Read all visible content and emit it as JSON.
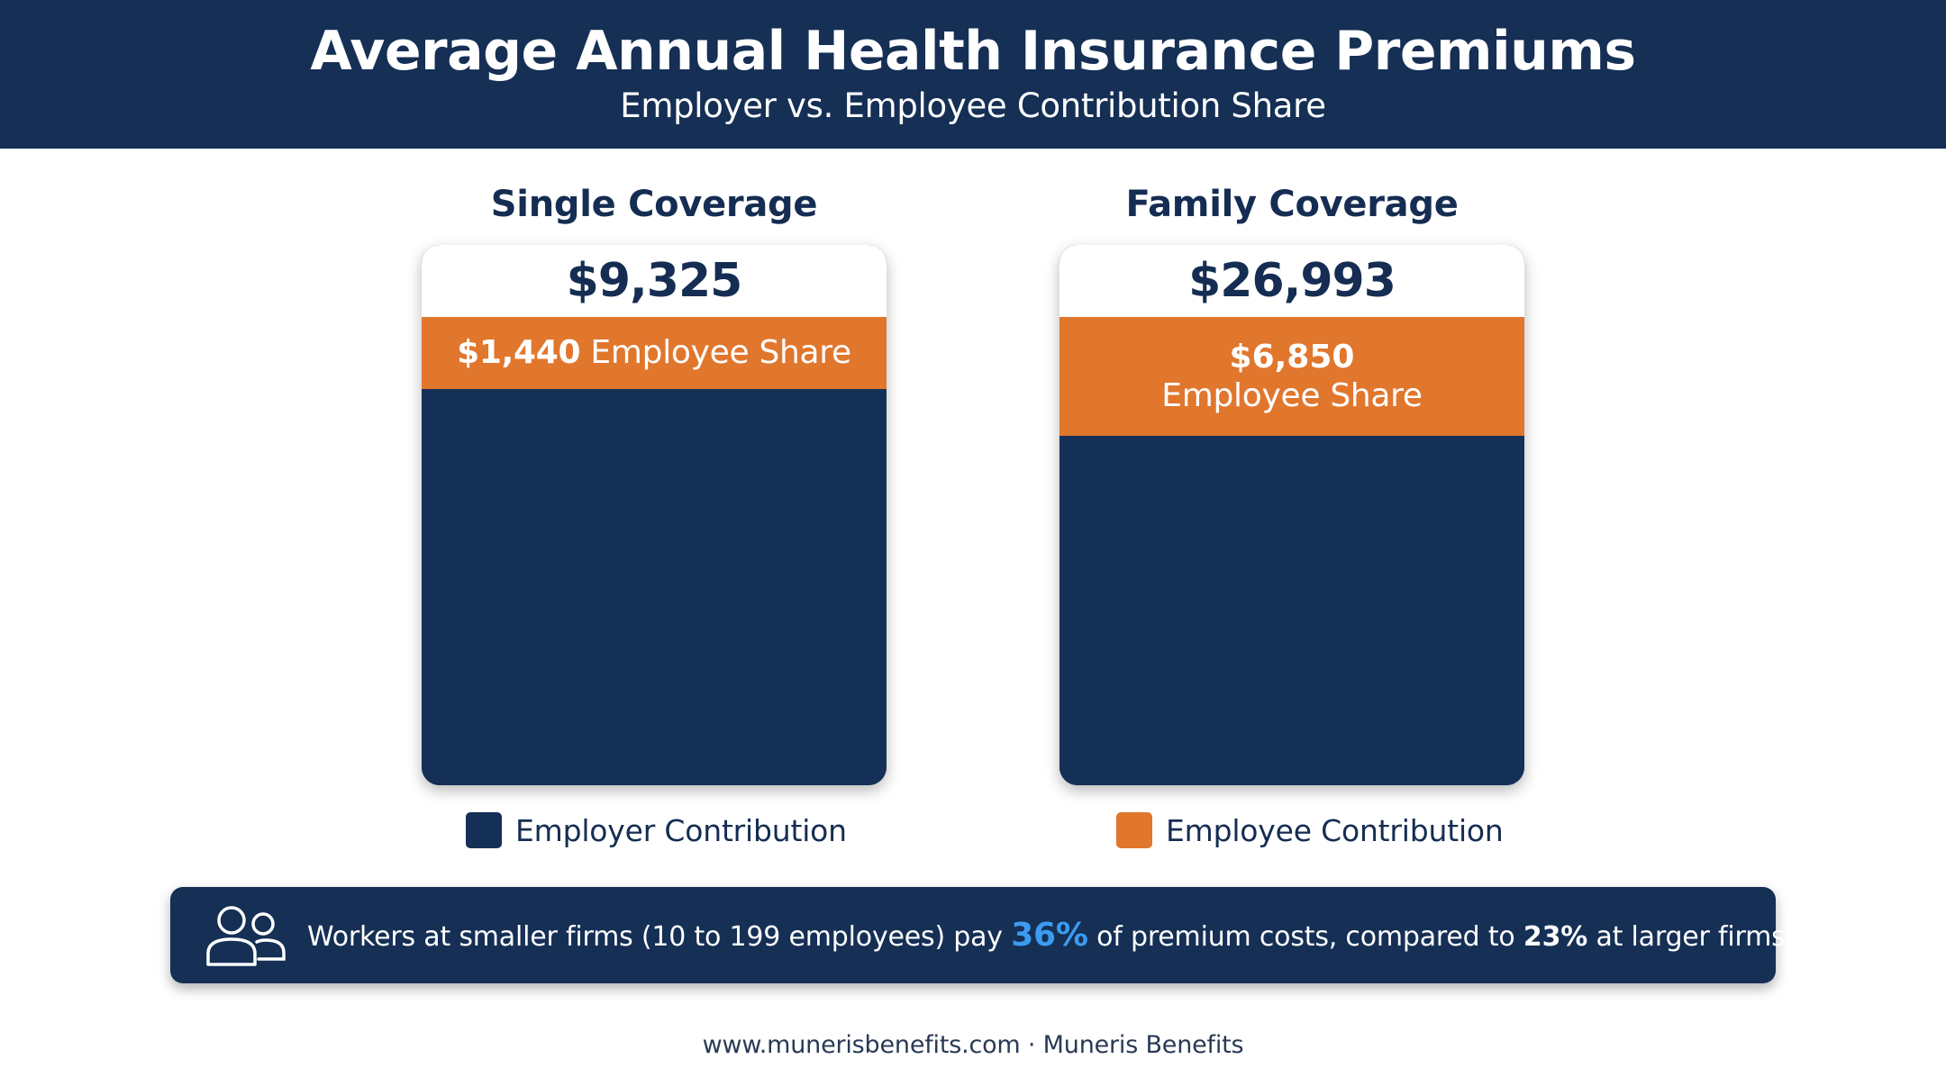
{
  "header": {
    "title": "Average Annual Health Insurance Premiums",
    "subtitle": "Employer vs. Employee Contribution Share"
  },
  "chart_data": {
    "type": "bar",
    "stacked": true,
    "categories": [
      "Single Coverage",
      "Family Coverage"
    ],
    "totals": [
      9325,
      26993
    ],
    "total_labels": [
      "$9,325",
      "$26,993"
    ],
    "series": [
      {
        "name": "Employer Contribution",
        "values": [
          7885,
          20143
        ],
        "color": "#153056"
      },
      {
        "name": "Employee Contribution",
        "values": [
          1440,
          6850
        ],
        "color": "#e1762d"
      }
    ],
    "segment_labels": [
      {
        "amount": "$1,440",
        "text": "Employee Share"
      },
      {
        "amount": "$6,850",
        "text": "Employee Share"
      }
    ],
    "legend": [
      "Employer Contribution",
      "Employee Contribution"
    ]
  },
  "banner": {
    "icon": "users-icon",
    "text_before": "Workers at smaller firms (10 to 199 employees) pay ",
    "small_firm_pct": "36%",
    "text_middle": " of premium costs, compared to ",
    "large_firm_pct": "23%",
    "text_after": " at larger firms."
  },
  "footer": {
    "text": "www.munerisbenefits.com · Muneris Benefits"
  }
}
